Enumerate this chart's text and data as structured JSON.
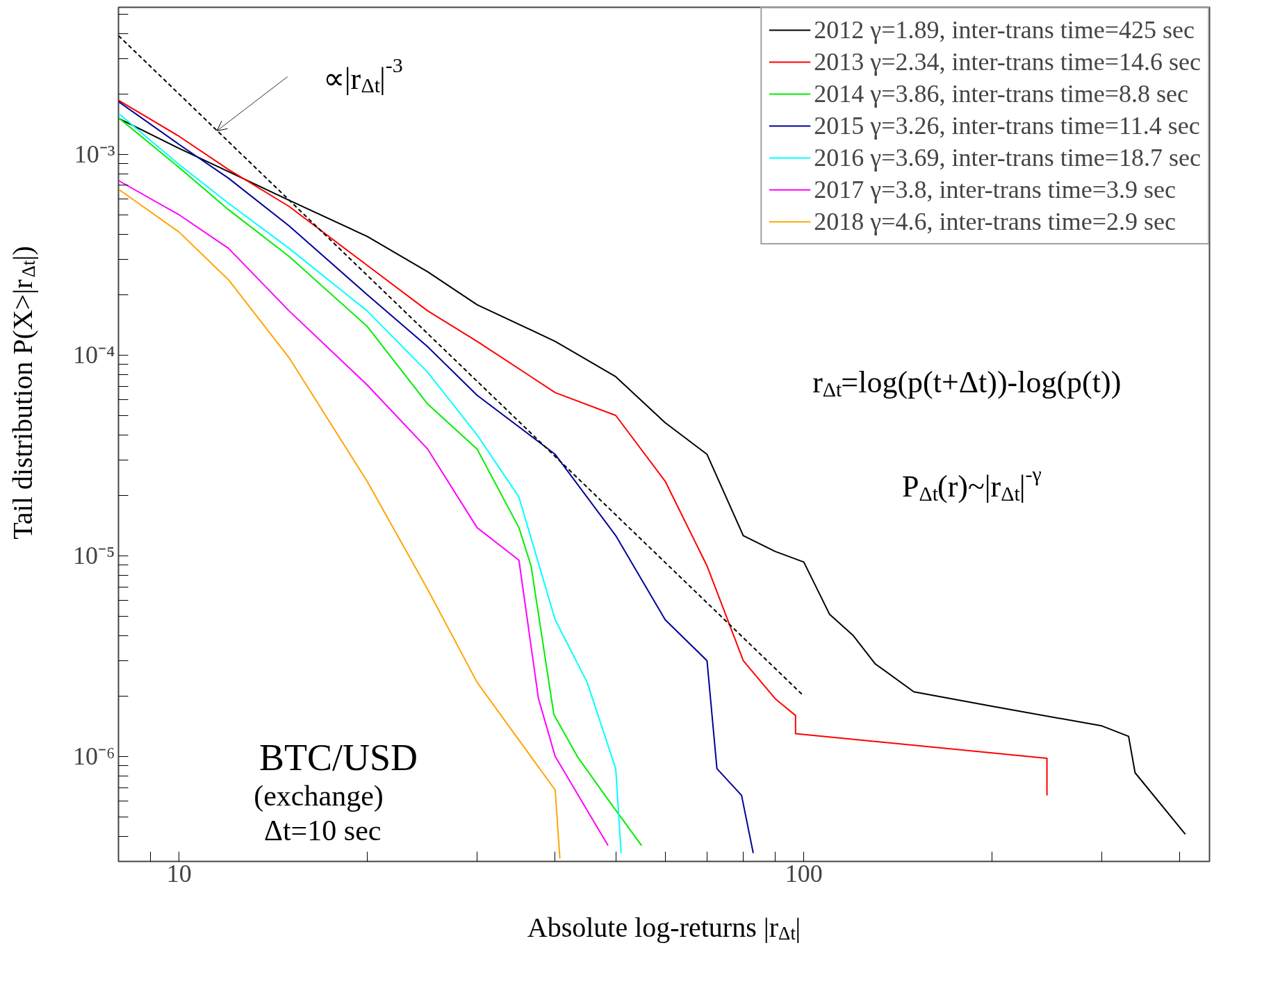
{
  "chart_data": {
    "type": "line",
    "xlabel": "Absolute log-returns |r$_{Δt}$|",
    "ylabel": "Tail distribution P(X>|r$_{Δt}$|)",
    "log": "xy",
    "grid": false,
    "legend": "top right",
    "marker": "none",
    "xlim": [
      8,
      446
    ],
    "ylim": [
      3e-07,
      0.0054
    ],
    "xticks": [
      {
        "value": 9,
        "label": null
      },
      10,
      {
        "value": 20,
        "label": null
      },
      {
        "value": 30,
        "label": null
      },
      {
        "value": 40,
        "label": null
      },
      {
        "value": 50,
        "label": null
      },
      {
        "value": 60,
        "label": null
      },
      {
        "value": 70,
        "label": null
      },
      {
        "value": 80,
        "label": null
      },
      {
        "value": 90,
        "label": null
      },
      100,
      {
        "value": 200,
        "label": null
      },
      {
        "value": 300,
        "label": null
      },
      {
        "value": 400,
        "label": null
      }
    ],
    "yticks": [
      {
        "value": 4e-07,
        "label": null
      },
      {
        "value": 5e-07,
        "label": null
      },
      {
        "value": 6e-07,
        "label": null
      },
      {
        "value": 7e-07,
        "label": null
      },
      {
        "value": 8e-07,
        "label": null
      },
      {
        "value": 9e-07,
        "label": null
      },
      {
        "value": 1e-06,
        "label": "10⁻⁶"
      },
      {
        "value": 2e-06,
        "label": null
      },
      {
        "value": 3e-06,
        "label": null
      },
      {
        "value": 4e-06,
        "label": null
      },
      {
        "value": 5e-06,
        "label": null
      },
      {
        "value": 6e-06,
        "label": null
      },
      {
        "value": 7e-06,
        "label": null
      },
      {
        "value": 8e-06,
        "label": null
      },
      {
        "value": 9e-06,
        "label": null
      },
      {
        "value": 1e-05,
        "label": "10⁻⁵"
      },
      {
        "value": 2e-05,
        "label": null
      },
      {
        "value": 3e-05,
        "label": null
      },
      {
        "value": 4e-05,
        "label": null
      },
      {
        "value": 5e-05,
        "label": null
      },
      {
        "value": 6e-05,
        "label": null
      },
      {
        "value": 7e-05,
        "label": null
      },
      {
        "value": 8e-05,
        "label": null
      },
      {
        "value": 9e-05,
        "label": null
      },
      {
        "value": 0.0001,
        "label": "10⁻⁴"
      },
      {
        "value": 0.0002,
        "label": null
      },
      {
        "value": 0.0003,
        "label": null
      },
      {
        "value": 0.0004,
        "label": null
      },
      {
        "value": 0.0005,
        "label": null
      },
      {
        "value": 0.0006,
        "label": null
      },
      {
        "value": 0.0007,
        "label": null
      },
      {
        "value": 0.0008,
        "label": null
      },
      {
        "value": 0.0009,
        "label": null
      },
      {
        "value": 0.001,
        "label": "10⁻³"
      },
      {
        "value": 0.002,
        "label": null
      },
      {
        "value": 0.003,
        "label": null
      },
      {
        "value": 0.004,
        "label": null
      },
      {
        "value": 0.005,
        "label": null
      }
    ],
    "series": [
      {
        "name": "2012 γ=1.89, inter-trans time=425 sec",
        "color": "#000000",
        "x": [
          8,
          10,
          12,
          15,
          20,
          25,
          30,
          40,
          50,
          60,
          70,
          80,
          90,
          100,
          110,
          120,
          130,
          150,
          200,
          300,
          331,
          339,
          408
        ],
        "values": [
          0.00151,
          0.00107,
          0.00082,
          0.00059,
          0.00039,
          0.00026,
          0.000178,
          0.000117,
          7.8e-05,
          4.6e-05,
          3.2e-05,
          1.26e-05,
          1.05e-05,
          9.3e-06,
          5.1e-06,
          4e-06,
          2.9e-06,
          2.1e-06,
          1.78e-06,
          1.42e-06,
          1.26e-06,
          8.3e-07,
          4.1e-07
        ]
      },
      {
        "name": "2013 γ=2.34, inter-trans time=14.6 sec",
        "color": "#ff0000",
        "x": [
          8,
          10,
          12,
          15,
          20,
          25,
          30,
          40,
          50,
          60,
          70,
          80,
          90,
          97,
          97,
          245,
          245
        ],
        "values": [
          0.00186,
          0.00123,
          0.00084,
          0.00055,
          0.00028,
          0.000166,
          0.000117,
          6.5e-05,
          5e-05,
          2.35e-05,
          8.9e-06,
          3e-06,
          1.94e-06,
          1.6e-06,
          1.3e-06,
          9.8e-07,
          6.4e-07
        ]
      },
      {
        "name": "2014 γ=3.86, inter-trans time=8.8 sec",
        "color": "#00ee00",
        "x": [
          8,
          10,
          12,
          15,
          20,
          25,
          30,
          35,
          36.6,
          39.8,
          43.4,
          48.6,
          55
        ],
        "values": [
          0.00152,
          0.00086,
          0.00053,
          0.00031,
          0.000139,
          5.7e-05,
          3.4e-05,
          1.38e-05,
          8.9e-06,
          1.62e-06,
          1e-06,
          6.1e-07,
          3.6e-07
        ]
      },
      {
        "name": "2015 γ=3.26, inter-trans time=11.4 sec",
        "color": "#000099",
        "x": [
          8,
          10,
          12,
          15,
          20,
          25,
          30,
          40,
          50,
          60,
          70,
          72.6,
          79.5,
          83
        ],
        "values": [
          0.00183,
          0.00112,
          0.00076,
          0.00044,
          0.0002,
          0.00011,
          6.3e-05,
          3.2e-05,
          1.26e-05,
          4.8e-06,
          3e-06,
          8.7e-07,
          6.4e-07,
          3.3e-07
        ]
      },
      {
        "name": "2016 γ=3.69, inter-trans time=18.7 sec",
        "color": "#00ffff",
        "x": [
          8,
          10,
          12,
          15,
          20,
          25,
          30,
          35,
          40,
          45,
          50,
          51
        ],
        "values": [
          0.0016,
          0.00089,
          0.00057,
          0.00034,
          0.000166,
          8.2e-05,
          4e-05,
          1.96e-05,
          4.8e-06,
          2.34e-06,
          8.7e-07,
          3.3e-07
        ]
      },
      {
        "name": "2017 γ=3.8, inter-trans time=3.9 sec",
        "color": "#ff00ff",
        "x": [
          8,
          10,
          12,
          15,
          20,
          25,
          30,
          35,
          37.6,
          40,
          48.6
        ],
        "values": [
          0.00074,
          0.0005,
          0.00034,
          0.000166,
          7.1e-05,
          3.4e-05,
          1.38e-05,
          9.5e-06,
          1.95e-06,
          1e-06,
          3.6e-07
        ]
      },
      {
        "name": "2018 γ=4.6, inter-trans time=2.9 sec",
        "color": "#ffa500",
        "x": [
          8,
          10,
          12,
          15,
          20,
          25,
          30,
          40,
          40.7
        ],
        "values": [
          0.00067,
          0.00041,
          0.000237,
          9.7e-05,
          2.35e-05,
          6.8e-06,
          2.34e-06,
          6.8e-07,
          3.1e-07
        ]
      },
      {
        "type": "line",
        "color": "#000000",
        "line_style": "dashed",
        "x": [
          8,
          100
        ],
        "values": [
          0.0039,
          2e-06
        ]
      }
    ],
    "annotations": [
      {
        "text": "∝|r$_{Δt}$|$^{-3}$",
        "x": 11.5,
        "y": 0.00131
      },
      "r$_{Δt}$=log(p(t+Δt))-log(p(t))",
      "P$_{Δt}$(r)~|r$_{Δt}$|$^{-γ}$",
      "BTC/USD",
      "(exchange)",
      "Δt=10 sec"
    ]
  }
}
